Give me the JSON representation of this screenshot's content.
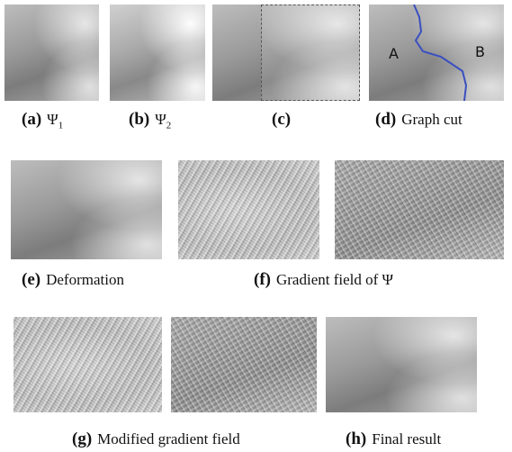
{
  "panels": [
    {
      "label": "(a)",
      "caption": "Ψ",
      "subscript": "1"
    },
    {
      "label": "(b)",
      "caption": "Ψ",
      "subscript": "2"
    },
    {
      "label": "(c)"
    },
    {
      "label": "(d)",
      "caption": "Graph cut",
      "regions": [
        "A",
        "B"
      ]
    },
    {
      "label": "(e)",
      "caption": "Deformation"
    },
    {
      "label": "(f)",
      "caption": "Gradient field of Ψ"
    },
    {
      "label": "(g)",
      "caption": "Modified gradient field"
    },
    {
      "label": "(h)",
      "caption": "Final result"
    }
  ]
}
